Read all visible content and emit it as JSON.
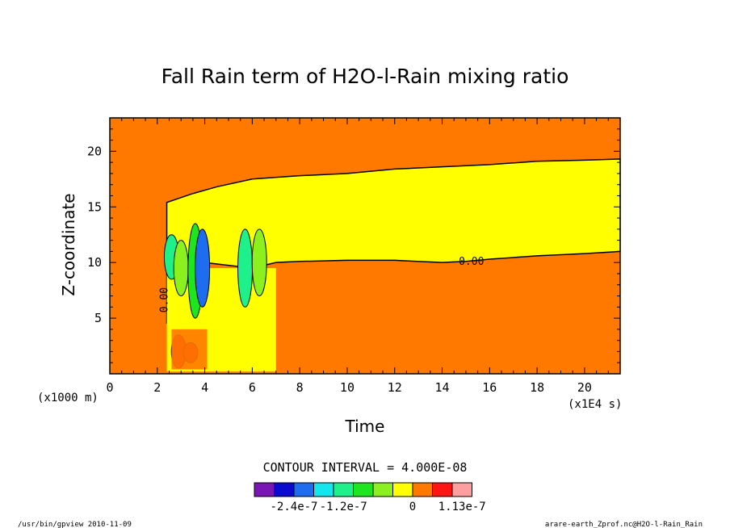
{
  "chart_data": {
    "type": "heatmap",
    "title": "Fall Rain term of H2O-l-Rain mixing ratio",
    "xlabel": "Time",
    "ylabel": "Z-coordinate",
    "x_unit": "(x1E4 s)",
    "y_unit": "(x1000 m)",
    "xlim": [
      0,
      21.5
    ],
    "ylim": [
      0,
      23
    ],
    "x_ticks": [
      0,
      2,
      4,
      6,
      8,
      10,
      12,
      14,
      16,
      18,
      20
    ],
    "y_ticks": [
      5,
      10,
      15,
      20
    ],
    "contour_interval_text": "CONTOUR INTERVAL = 4.000E-08",
    "contour_labels": [
      "0.00",
      "0.00"
    ],
    "colorbar": {
      "colors": [
        "#7a16b5",
        "#0a0ad0",
        "#1e6cf0",
        "#14e6f0",
        "#1ef08c",
        "#1ee61e",
        "#8cf01e",
        "#ffff00",
        "#ff7800",
        "#ff1414",
        "#ff9ea0"
      ],
      "tick_labels": [
        "-2.4e-7",
        "-1.2e-7",
        "0",
        "1.13e-7"
      ]
    },
    "background_color": "#ff7800",
    "zero_band_color": "#ffff00",
    "zero_band_upper": [
      [
        2.4,
        15.4
      ],
      [
        3.5,
        16.2
      ],
      [
        4.5,
        16.8
      ],
      [
        6,
        17.5
      ],
      [
        8,
        17.8
      ],
      [
        10,
        18.0
      ],
      [
        12,
        18.4
      ],
      [
        14,
        18.6
      ],
      [
        16,
        18.8
      ],
      [
        18,
        19.1
      ],
      [
        20,
        19.2
      ],
      [
        21.5,
        19.3
      ]
    ],
    "zero_band_lower": [
      [
        2.4,
        4.5
      ],
      [
        3,
        9.5
      ],
      [
        4,
        10
      ],
      [
        6,
        9.5
      ],
      [
        7,
        10
      ],
      [
        8,
        10.1
      ],
      [
        10,
        10.2
      ],
      [
        12,
        10.2
      ],
      [
        14,
        10.0
      ],
      [
        15,
        10.1
      ],
      [
        16,
        10.3
      ],
      [
        18,
        10.6
      ],
      [
        20,
        10.8
      ],
      [
        21.5,
        11.0
      ]
    ]
  },
  "footer": {
    "left": "/usr/bin/gpview  2010-11-09",
    "right": "arare-earth_Zprof.nc@H2O-l-Rain_Rain"
  }
}
